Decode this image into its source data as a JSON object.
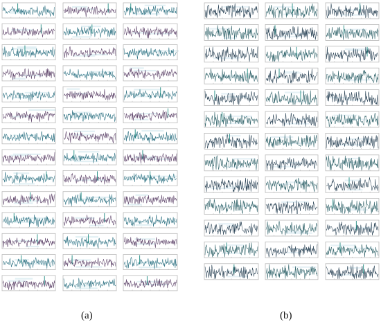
{
  "figure": {
    "panels": [
      {
        "id": "a",
        "caption": "(a)",
        "rows": 14,
        "cols": 3,
        "trace_colors": [
          "#2a6f80",
          "#5a3f66"
        ],
        "spike_color": "#1e8a80",
        "frame_color": "#b8b8b8",
        "ghost_text_color": "#e2f0f4"
      },
      {
        "id": "b",
        "caption": "(b)",
        "rows": 13,
        "cols": 3,
        "trace_colors": [
          "#263f52",
          "#2b5f66"
        ],
        "spike_color": "#1e8a80",
        "frame_color": "#b8b8b8",
        "ghost_text_color": "#e6f1f6"
      }
    ]
  }
}
